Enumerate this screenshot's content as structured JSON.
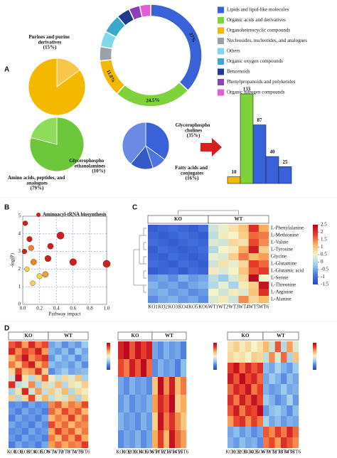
{
  "chart_data": [
    {
      "type": "donut",
      "panel": "A",
      "categories": [
        "Lipids and lipid-like molecules",
        "Organic acids and derivatives",
        "Organoheterocyclic compounds",
        "Nucleosides, nucleotides, and analogues",
        "Others",
        "Organic oxygen compounds",
        "Benzenoids",
        "Phenylpropanoids and polyketides",
        "Organic nitrogen compounds"
      ],
      "values": [
        37,
        24.5,
        11.8,
        4.5,
        5,
        6,
        4.2,
        3.5,
        3.5
      ],
      "value_labels": [
        "37%",
        "24.5%",
        "11.8%",
        null,
        null,
        null,
        null,
        null,
        null
      ],
      "colors": [
        "#3a62d8",
        "#7ed23a",
        "#f5b800",
        "#9aa0a8",
        "#7fd9e8",
        "#3aa9c9",
        "#1f3a8f",
        "#8e3fb8",
        "#e25ed8"
      ]
    },
    {
      "type": "pie",
      "categories": [
        "Purines and purine derivatives",
        null
      ],
      "values": [
        15,
        85
      ],
      "value_labels": [
        "(15%)",
        null
      ],
      "colors": [
        "#f7c64a",
        "#f5b800"
      ]
    },
    {
      "type": "pie",
      "categories": [
        "Amino acids, peptides, and analogues",
        null
      ],
      "values": [
        79,
        21
      ],
      "value_labels": [
        "(79%)",
        null
      ],
      "colors": [
        "#6cc83a",
        "#8fdc5c"
      ]
    },
    {
      "type": "pie",
      "categories": [
        "Glycerophospho cholines",
        "Glycerophospho ethanolamines",
        "Fatty acids and conjugates",
        null
      ],
      "values": [
        35,
        10,
        16,
        39
      ],
      "value_labels": [
        "(35%)",
        "(10%)",
        "(16%)",
        null
      ],
      "colors": [
        "#3a62d8",
        "#4f75e0",
        "#3559c8",
        "#6a8ae6"
      ]
    },
    {
      "type": "bar",
      "values": [
        10,
        133,
        87,
        40,
        25
      ],
      "colors": [
        "#f5b800",
        "#7ed23a",
        "#3a62d8",
        "#3a62d8",
        "#3a62d8"
      ]
    },
    {
      "type": "scatter",
      "panel": "B",
      "annotation": "Aminoacyl-tRNA biosynthesis",
      "annotation_color": "#cc1f1f",
      "xlabel": "Pathway impact",
      "ylabel": "-log(P)",
      "x": [
        0.03,
        0.08,
        0.02,
        0.1,
        0.05,
        0.13,
        0.3,
        0.33,
        0.45,
        0.6,
        0.2,
        0.27,
        0.12,
        1.0
      ],
      "y": [
        4.6,
        3.7,
        3.0,
        3.2,
        2.0,
        2.4,
        2.6,
        3.3,
        3.9,
        2.4,
        1.6,
        1.7,
        1.2,
        2.3
      ],
      "sizes": [
        3,
        4,
        3,
        4,
        3,
        5,
        6,
        5,
        9,
        8,
        4,
        5,
        3,
        9
      ],
      "colors": [
        "#cc1f1f",
        "#cc1f1f",
        "#cc1f1f",
        "#e88a1a",
        "#f0d84a",
        "#e88a1a",
        "#cc1f1f",
        "#cc1f1f",
        "#cc1f1f",
        "#cc1f1f",
        "#f0d84a",
        "#e8a33a",
        "#f0d84a",
        "#cc1f1f"
      ],
      "xlim": [
        0,
        1
      ],
      "ylim": [
        0,
        5
      ],
      "xticks": [
        {
          "value": 0,
          "label": "0.0"
        },
        {
          "value": 0.2,
          "label": "0.2"
        },
        {
          "value": 0.4,
          "label": "0.4"
        },
        {
          "value": 0.6,
          "label": "0.6"
        },
        {
          "value": 0.8,
          "label": "0.8"
        },
        {
          "value": 1,
          "label": "1.0"
        }
      ],
      "yticks": [
        0,
        1,
        2,
        3,
        4,
        5
      ],
      "grid": true
    },
    {
      "type": "heatmap",
      "panel": "C",
      "groups": [
        "KO",
        "WT"
      ],
      "rows": [
        "L-Phenylalanine",
        "L-Methionine",
        "L-Valine",
        "L-Tyrosine",
        "Glycine",
        "L-Glutamine",
        "L-Glutamic acid",
        "L-Serine",
        "L-Threonine",
        "L-Arginine",
        "L-Alanine"
      ],
      "columns": [
        "KO1",
        "KO2",
        "KO3",
        "KO4",
        "KO5",
        "KO6",
        "WT1",
        "WT2",
        "WT3",
        "WT4",
        "WT5",
        "WT6"
      ],
      "values": [
        [
          -1.2,
          -1.1,
          -1.0,
          -1.1,
          -1.2,
          -1.0,
          0.2,
          0.4,
          0.7,
          1.0,
          2.0,
          1.2
        ],
        [
          -1.1,
          -1.2,
          -1.1,
          -1.0,
          -1.1,
          -1.2,
          0.1,
          0.6,
          0.5,
          0.9,
          1.6,
          1.5
        ],
        [
          -1.0,
          -1.1,
          -1.2,
          -1.1,
          -1.0,
          -1.1,
          0.3,
          0.2,
          0.8,
          0.7,
          1.8,
          1.4
        ],
        [
          -1.2,
          -1.0,
          -1.1,
          -1.2,
          -1.1,
          -1.0,
          0.0,
          0.5,
          0.6,
          1.2,
          2.2,
          0.9
        ],
        [
          -1.1,
          -1.2,
          -1.0,
          -1.1,
          -1.2,
          -1.1,
          0.4,
          0.3,
          0.9,
          1.5,
          1.1,
          1.3
        ],
        [
          -1.0,
          -1.1,
          -1.2,
          -1.0,
          -1.1,
          -1.2,
          0.2,
          0.7,
          0.4,
          0.8,
          1.9,
          1.6
        ],
        [
          -1.2,
          -1.1,
          -1.0,
          -1.2,
          -1.0,
          -1.1,
          0.6,
          0.3,
          0.5,
          1.0,
          1.7,
          1.9
        ],
        [
          -0.6,
          -0.5,
          -0.7,
          -0.4,
          -0.6,
          -0.5,
          0.1,
          -0.2,
          0.3,
          0.8,
          2.4,
          0.5
        ],
        [
          -0.4,
          -0.6,
          -0.5,
          -0.7,
          -0.5,
          -0.4,
          0.0,
          0.4,
          -0.1,
          0.6,
          0.9,
          2.3
        ],
        [
          -0.5,
          -0.4,
          -0.6,
          -0.5,
          -0.7,
          -0.6,
          0.5,
          0.2,
          0.6,
          0.3,
          1.0,
          2.0
        ],
        [
          -0.7,
          -0.5,
          -0.4,
          -0.6,
          -0.5,
          -0.7,
          0.3,
          0.6,
          0.2,
          1.4,
          0.8,
          1.1
        ]
      ],
      "colors": [
        "#2346c8",
        "#4a7be0",
        "#9fd0ee",
        "#f4f4c8",
        "#fdb462",
        "#e8402a",
        "#b5001e"
      ],
      "zlim": [
        -1.5,
        2.5
      ],
      "zticks": [
        2.5,
        2,
        1.5,
        1,
        0.5,
        0,
        -0.5,
        -1,
        -1.5
      ]
    },
    {
      "type": "heatmap",
      "panel": "D",
      "groups": [
        "KO",
        "WT"
      ],
      "columns": [
        "KO1",
        "KO2",
        "KO3",
        "KO4",
        "KO5",
        "KO6",
        "WT1",
        "WT2",
        "WT3",
        "WT4",
        "WT5",
        "WT6"
      ],
      "values": [
        [
          1.2,
          1.5,
          0.8,
          1.6,
          1.0,
          1.3,
          -1.0,
          -0.8,
          -1.2,
          -0.9,
          -1.1,
          -0.7
        ],
        [
          1.6,
          0.9,
          1.4,
          1.1,
          1.7,
          0.8,
          -0.9,
          -1.1,
          -0.8,
          -1.2,
          -0.7,
          -1.0
        ],
        [
          0.6,
          1.1,
          1.8,
          0.9,
          1.2,
          1.5,
          -1.1,
          -0.7,
          -1.0,
          -0.8,
          -1.2,
          -0.9
        ],
        [
          1.0,
          0.5,
          1.2,
          1.7,
          0.7,
          1.1,
          -0.8,
          -1.0,
          -0.9,
          -1.1,
          -0.8,
          -1.2
        ],
        [
          0.3,
          1.4,
          0.6,
          0.8,
          1.5,
          0.4,
          -1.2,
          -0.9,
          -0.7,
          -1.0,
          -0.9,
          -0.8
        ],
        [
          -0.3,
          1.8,
          0.2,
          -0.5,
          0.4,
          1.2,
          0.1,
          -0.4,
          0.3,
          -0.2,
          0.5,
          -0.6
        ],
        [
          1.5,
          -0.4,
          -0.2,
          0.9,
          -0.6,
          0.3,
          -0.3,
          0.6,
          -0.5,
          0.2,
          -0.1,
          0.4
        ],
        [
          -0.6,
          0.2,
          1.6,
          -0.3,
          0.8,
          -0.4,
          0.4,
          -0.2,
          0.6,
          -0.5,
          0.3,
          0.1
        ],
        [
          0.4,
          -0.5,
          0.3,
          1.3,
          -0.2,
          0.6,
          -0.4,
          0.2,
          -0.3,
          0.5,
          -0.6,
          0.3
        ],
        [
          -1.2,
          -1.1,
          -1.3,
          -1.0,
          -1.2,
          -1.1,
          0.9,
          1.2,
          0.6,
          1.0,
          0.8,
          1.3
        ],
        [
          -1.1,
          -1.3,
          -1.0,
          -1.2,
          -1.1,
          -1.3,
          1.1,
          0.7,
          1.3,
          0.9,
          1.2,
          0.6
        ],
        [
          -1.3,
          -1.0,
          -1.2,
          -1.1,
          -1.3,
          -1.0,
          0.6,
          1.0,
          0.8,
          1.4,
          0.7,
          1.1
        ],
        [
          -1.0,
          -1.2,
          -1.1,
          -1.3,
          -1.0,
          -1.2,
          1.3,
          0.8,
          1.1,
          0.6,
          1.0,
          0.9
        ],
        [
          -1.2,
          -1.1,
          -1.3,
          -1.0,
          -1.2,
          -1.1,
          0.7,
          1.4,
          0.9,
          1.2,
          0.6,
          1.0
        ],
        [
          -1.1,
          -1.3,
          -1.0,
          -1.2,
          -1.1,
          -1.3,
          1.0,
          0.6,
          1.2,
          0.8,
          1.3,
          0.7
        ],
        [
          -1.3,
          -1.0,
          -1.2,
          -1.1,
          -1.3,
          -1.0,
          0.8,
          1.1,
          0.7,
          1.0,
          0.9,
          1.4
        ]
      ],
      "colors": [
        "#2346c8",
        "#4a7be0",
        "#9fd0ee",
        "#f4f4c8",
        "#fdb462",
        "#e8402a",
        "#b5001e"
      ],
      "zlim": [
        -2,
        2
      ]
    },
    {
      "type": "heatmap",
      "groups": [
        "KO",
        "WT"
      ],
      "columns": [
        "KO1",
        "KO2",
        "KO3",
        "KO4",
        "KO5",
        "KO6",
        "WT1",
        "WT2",
        "WT3",
        "WT4",
        "WT5",
        "WT6"
      ],
      "values": [
        [
          1.6,
          1.9,
          1.2,
          1.8,
          1.4,
          1.7,
          -1.0,
          -1.2,
          -0.9,
          -1.1,
          -1.0,
          -1.3
        ],
        [
          1.3,
          1.0,
          1.7,
          1.2,
          1.9,
          1.1,
          -1.2,
          -0.9,
          -1.1,
          -1.0,
          -1.3,
          -0.8
        ],
        [
          -1.0,
          -1.2,
          -0.9,
          -1.1,
          -1.0,
          -1.2,
          0.5,
          1.9,
          0.9,
          1.7,
          0.6,
          1.0
        ],
        [
          -1.1,
          -0.9,
          -1.2,
          -1.0,
          -1.1,
          -0.9,
          0.8,
          1.6,
          1.2,
          1.9,
          0.4,
          0.7
        ],
        [
          -0.9,
          -1.1,
          -1.0,
          -1.2,
          -0.9,
          -1.1,
          0.4,
          1.8,
          1.0,
          1.5,
          0.9,
          0.5
        ],
        [
          -1.2,
          -1.0,
          -1.1,
          -0.9,
          -1.2,
          -1.0,
          0.7,
          1.4,
          0.6,
          1.8,
          1.1,
          0.8
        ]
      ],
      "colors": [
        "#2346c8",
        "#4a7be0",
        "#9fd0ee",
        "#f4f4c8",
        "#fdb462",
        "#e8402a",
        "#b5001e"
      ],
      "zlim": [
        -2,
        2
      ]
    },
    {
      "type": "heatmap",
      "groups": [
        "KO",
        "WT"
      ],
      "columns": [
        "KO1",
        "KO2",
        "KO3",
        "KO4",
        "KO5",
        "KO6",
        "WT1",
        "WT2",
        "WT3",
        "WT4",
        "WT5",
        "WT6"
      ],
      "values": [
        [
          0.2,
          0.4,
          0.1,
          0.3,
          0.0,
          0.2,
          0.6,
          -0.3,
          1.2,
          -0.5,
          0.8,
          -0.2
        ],
        [
          0.3,
          0.1,
          0.2,
          0.0,
          0.4,
          0.3,
          -0.4,
          0.9,
          -0.2,
          1.1,
          -0.6,
          0.5
        ],
        [
          1.4,
          1.8,
          1.1,
          1.6,
          1.2,
          1.5,
          -0.8,
          -1.0,
          -0.6,
          -0.9,
          -1.1,
          -0.7
        ],
        [
          1.7,
          1.2,
          1.9,
          1.3,
          1.6,
          1.1,
          -1.0,
          -0.7,
          -0.9,
          -1.2,
          -0.8,
          -1.0
        ],
        [
          1.1,
          1.6,
          1.3,
          1.8,
          1.0,
          1.4,
          -0.9,
          -1.1,
          -1.0,
          -0.7,
          -1.0,
          -0.9
        ],
        [
          1.5,
          1.0,
          1.7,
          1.2,
          1.8,
          1.3,
          -0.7,
          -0.9,
          -1.2,
          -1.0,
          -0.6,
          -1.1
        ],
        [
          1.2,
          1.7,
          1.0,
          1.5,
          1.3,
          1.9,
          -1.1,
          -0.8,
          -0.7,
          -0.9,
          -1.2,
          -0.8
        ],
        [
          0.8,
          1.3,
          1.5,
          0.9,
          1.4,
          1.0,
          -0.6,
          -1.0,
          -0.8,
          -1.1,
          -0.9,
          -1.0
        ],
        [
          -1.0,
          -0.8,
          -1.1,
          -0.9,
          -1.2,
          -1.0,
          1.2,
          0.9,
          1.4,
          1.0,
          1.6,
          1.1
        ],
        [
          -0.9,
          -1.1,
          -0.8,
          -1.0,
          -0.9,
          -1.2,
          1.0,
          1.3,
          0.8,
          1.5,
          1.2,
          0.9
        ]
      ],
      "colors": [
        "#2346c8",
        "#4a7be0",
        "#9fd0ee",
        "#f4f4c8",
        "#fdb462",
        "#e8402a",
        "#b5001e"
      ],
      "zlim": [
        -2,
        2
      ]
    }
  ]
}
